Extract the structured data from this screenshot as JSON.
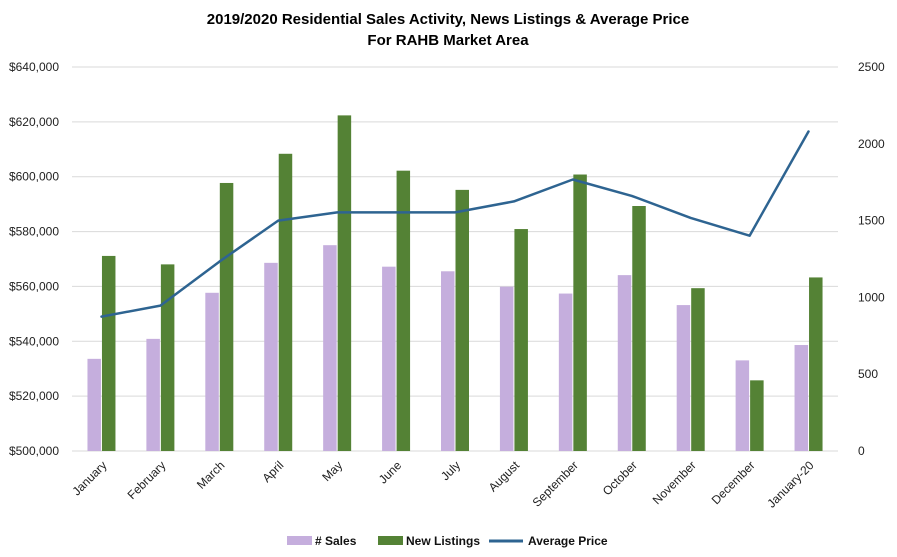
{
  "chart_data": {
    "type": "bar",
    "title": "2019/2020 Residential Sales Activity, News Listings & Average Price",
    "subtitle": "For RAHB Market Area",
    "categories": [
      "January",
      "February",
      "March",
      "April",
      "May",
      "June",
      "July",
      "August",
      "September",
      "October",
      "November",
      "December",
      "January-20"
    ],
    "series": [
      {
        "name": "# Sales",
        "type": "bar",
        "axis": "right",
        "color": "#c5aedd",
        "values": [
          600,
          730,
          1030,
          1225,
          1340,
          1200,
          1170,
          1070,
          1025,
          1145,
          950,
          590,
          690
        ]
      },
      {
        "name": "New Listings",
        "type": "bar",
        "axis": "right",
        "color": "#548235",
        "values": [
          1270,
          1215,
          1745,
          1935,
          2185,
          1825,
          1700,
          1445,
          1800,
          1595,
          1060,
          460,
          1130
        ]
      },
      {
        "name": "Average Price",
        "type": "line",
        "axis": "left",
        "color": "#2e6491",
        "values": [
          549000,
          553000,
          569000,
          584000,
          587000,
          587000,
          587000,
          591000,
          599000,
          593000,
          585000,
          578500,
          616500
        ]
      }
    ],
    "y_left": {
      "min": 500000,
      "max": 640000,
      "step": 20000,
      "tick_labels": [
        "$500,000",
        "$520,000",
        "$540,000",
        "$560,000",
        "$580,000",
        "$600,000",
        "$620,000",
        "$640,000"
      ]
    },
    "y_right": {
      "min": 0,
      "max": 2500,
      "step": 500,
      "tick_labels": [
        "0",
        "500",
        "1000",
        "1500",
        "2000",
        "2500"
      ]
    },
    "grid": true,
    "legend": "bottom"
  }
}
